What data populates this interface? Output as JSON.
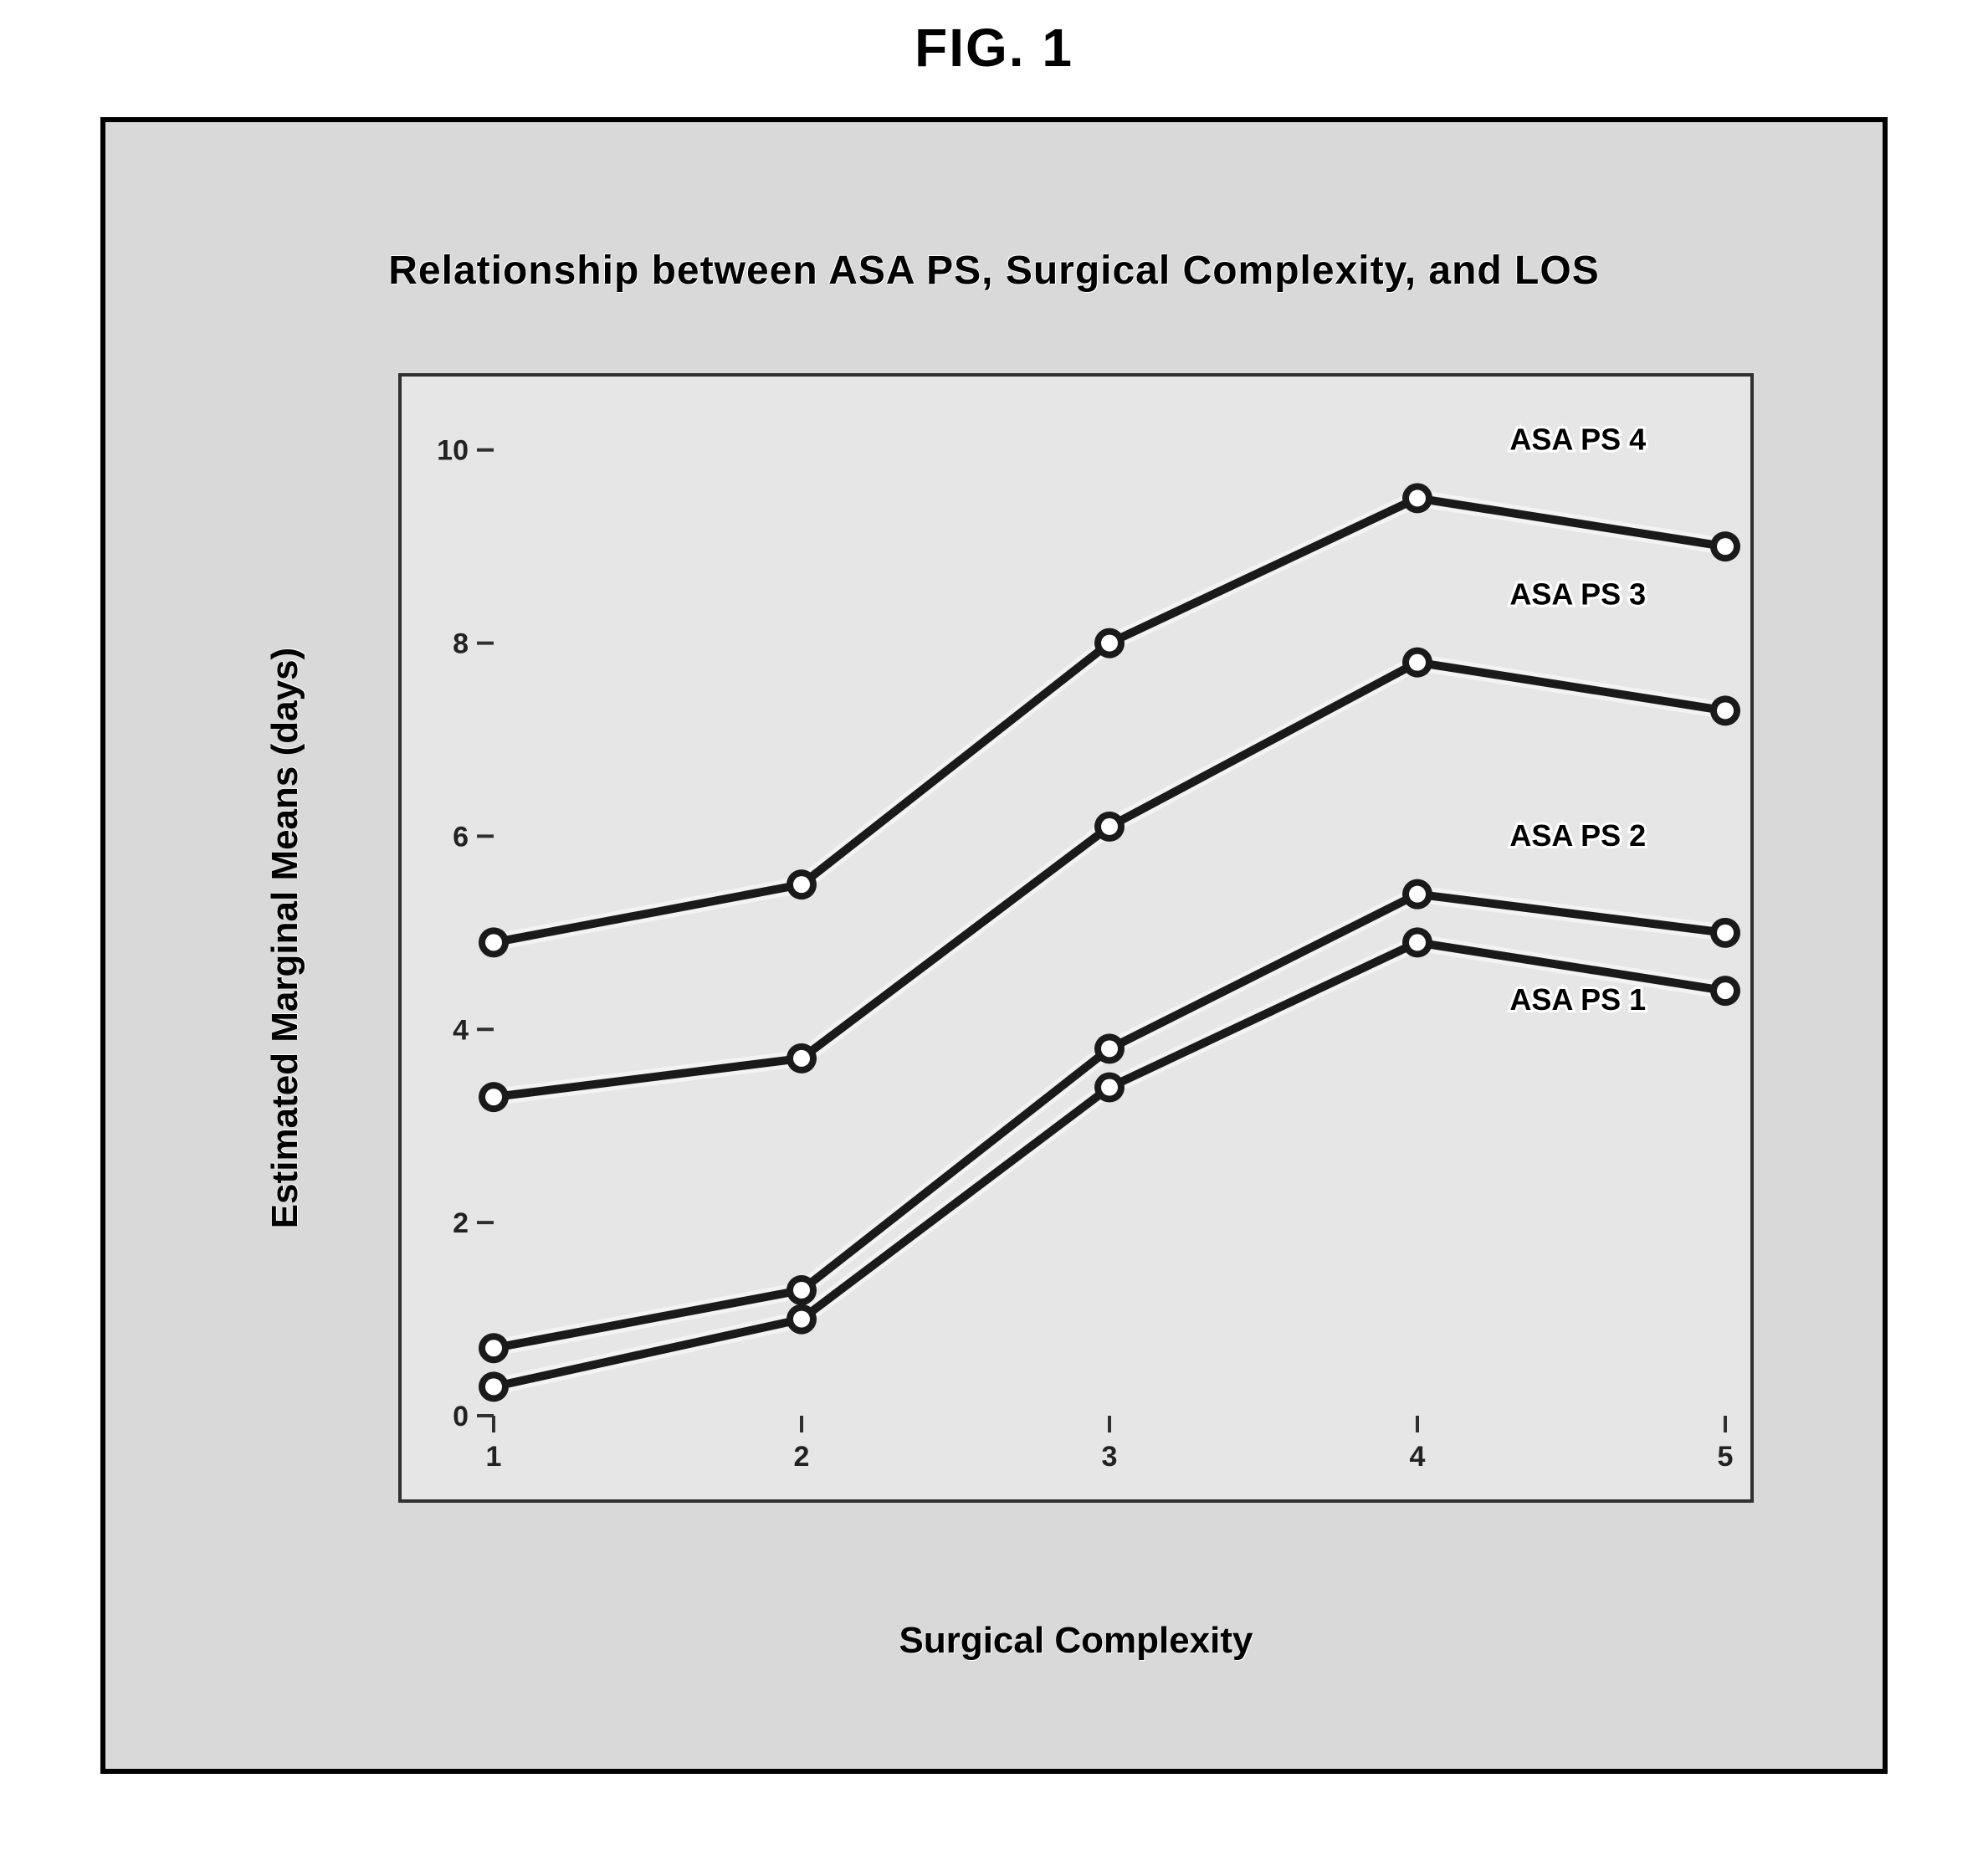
{
  "figure_label": "FIG. 1",
  "outer": {
    "border_color": "#000000",
    "background_color": "#d9d9d9"
  },
  "chart": {
    "type": "line",
    "title": "Relationship between ASA PS, Surgical Complexity, and LOS",
    "title_fontsize": 48,
    "panel_background_color": "#e6e6e6",
    "panel_border_color": "#303030",
    "x": {
      "label": "Surgical Complexity",
      "label_fontsize": 44,
      "ticks": [
        1,
        2,
        3,
        4,
        5
      ],
      "tick_labels": [
        "1",
        "2",
        "3",
        "4",
        "5"
      ],
      "min": 1,
      "max": 5
    },
    "y": {
      "label": "Estimated Marginal Means (days)",
      "label_fontsize": 44,
      "ticks": [
        0,
        2,
        4,
        6,
        8,
        10
      ],
      "tick_labels": [
        "0",
        "2",
        "4",
        "6",
        "8",
        "10"
      ],
      "min": 0,
      "max": 10.5
    },
    "tick_fontsize": 34,
    "tick_color": "#222222",
    "axis_line_color": "#303030",
    "line_width": 10,
    "marker_radius": 18,
    "marker_inner_radius": 10,
    "marker_fill": "#ffffff",
    "series": [
      {
        "name": "ASA PS 4",
        "label": "ASA PS 4",
        "color": "#1a1a1a",
        "x": [
          1,
          2,
          3,
          4,
          5
        ],
        "y": [
          4.9,
          5.5,
          8.0,
          9.5,
          9.0
        ],
        "label_at_x": 4.3,
        "label_y": 10.0
      },
      {
        "name": "ASA PS 3",
        "label": "ASA PS 3",
        "color": "#1a1a1a",
        "x": [
          1,
          2,
          3,
          4,
          5
        ],
        "y": [
          3.3,
          3.7,
          6.1,
          7.8,
          7.3
        ],
        "label_at_x": 4.3,
        "label_y": 8.4
      },
      {
        "name": "ASA PS 2",
        "label": "ASA PS 2",
        "color": "#1a1a1a",
        "x": [
          1,
          2,
          3,
          4,
          5
        ],
        "y": [
          0.7,
          1.3,
          3.8,
          5.4,
          5.0
        ],
        "label_at_x": 4.3,
        "label_y": 5.9
      },
      {
        "name": "ASA PS 1",
        "label": "ASA PS 1",
        "color": "#1a1a1a",
        "x": [
          1,
          2,
          3,
          4,
          5
        ],
        "y": [
          0.3,
          1.0,
          3.4,
          4.9,
          4.4
        ],
        "label_at_x": 4.3,
        "label_y": 4.2
      }
    ],
    "series_label_fontsize": 36
  }
}
